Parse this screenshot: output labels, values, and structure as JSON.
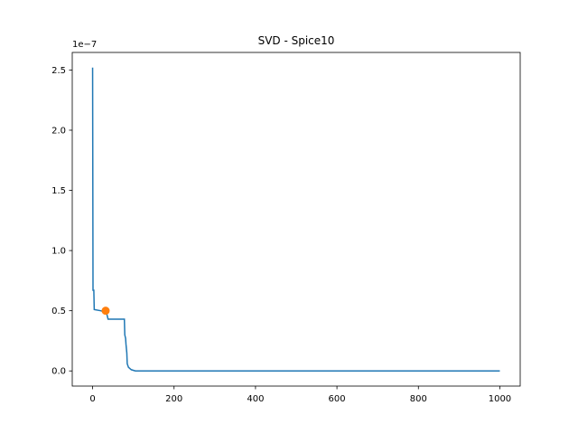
{
  "chart_data": {
    "type": "line",
    "title": "SVD - Spice10",
    "y_offset_label": "1e−7",
    "xlim": [
      -50,
      1050
    ],
    "ylim": [
      -0.126,
      2.646
    ],
    "xticks": [
      0,
      200,
      400,
      600,
      800,
      1000
    ],
    "yticks": [
      {
        "value": 0,
        "label": "0.0"
      },
      0.5,
      {
        "value": 1,
        "label": "1.0"
      },
      1.5,
      {
        "value": 2,
        "label": "2.0"
      },
      2.5
    ],
    "grid": false,
    "series": [
      {
        "type": "line",
        "color": "#1f77b4",
        "x": [
          0,
          1,
          3,
          4,
          20,
          30,
          35,
          38,
          78,
          79,
          81,
          82,
          84,
          85,
          88,
          95,
          105,
          200,
          400,
          600,
          800,
          1000
        ],
        "values": [
          2.52,
          0.67,
          0.67,
          0.51,
          0.5,
          0.49,
          0.47,
          0.43,
          0.43,
          0.3,
          0.27,
          0.22,
          0.15,
          0.06,
          0.03,
          0.01,
          0,
          0,
          0,
          0,
          0,
          0
        ]
      },
      {
        "type": "scatter",
        "color": "#ff7f0e",
        "x": [
          32
        ],
        "values": [
          0.5
        ]
      }
    ]
  }
}
